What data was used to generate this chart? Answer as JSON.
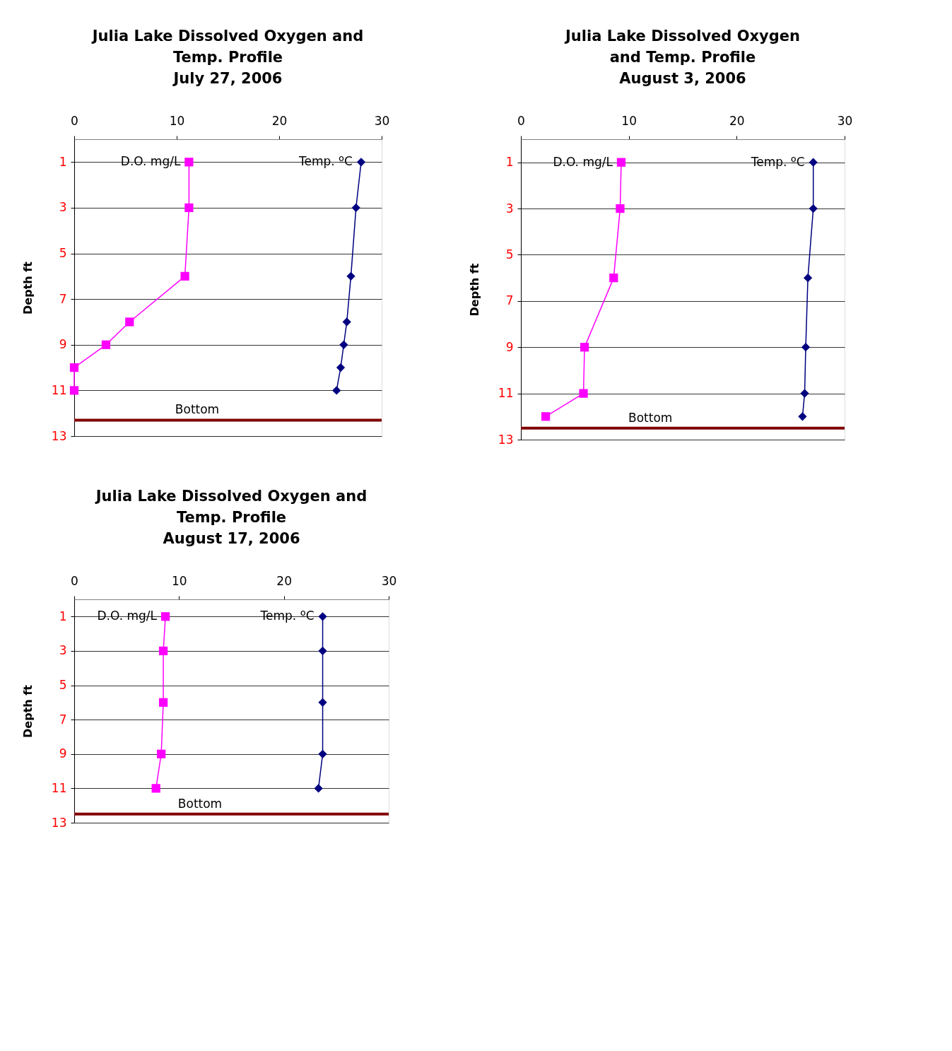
{
  "chart_data": [
    {
      "type": "line",
      "title": "Julia Lake Dissolved Oxygen and\nTemp. Profile\nJuly 27, 2006",
      "ylabel": "Depth ft",
      "xlim": [
        0,
        30
      ],
      "xticks": [
        0,
        10,
        20,
        30
      ],
      "ylim": [
        13,
        0
      ],
      "yticks": [
        1,
        3,
        5,
        7,
        9,
        11,
        13
      ],
      "grid": "y",
      "line_style": "solid",
      "series": [
        {
          "name": "D.O. mg/L",
          "color": "#ff00ff",
          "marker": "square",
          "x": [
            11.2,
            11.2,
            10.8,
            5.4,
            3.1,
            0,
            0
          ],
          "values": [
            1,
            3,
            6,
            8,
            9,
            10,
            11
          ]
        },
        {
          "name": "Temp. ºC",
          "color": "#000080",
          "marker": "diamond",
          "x": [
            28.0,
            27.5,
            27.0,
            26.6,
            26.3,
            26.0,
            25.6
          ],
          "values": [
            1,
            3,
            6,
            8,
            9,
            10,
            11
          ]
        }
      ],
      "ref_lines": [
        {
          "axis": "y",
          "value": 12.3,
          "label": "Bottom",
          "color": "#800000"
        }
      ]
    },
    {
      "type": "line",
      "title": "Julia Lake Dissolved Oxygen\nand Temp. Profile\nAugust 3, 2006",
      "ylabel": "Depth ft",
      "xlim": [
        0,
        30
      ],
      "xticks": [
        0,
        10,
        20,
        30
      ],
      "ylim": [
        13,
        0
      ],
      "yticks": [
        1,
        3,
        5,
        7,
        9,
        11,
        13
      ],
      "grid": "y",
      "line_style": "solid",
      "series": [
        {
          "name": "D.O. mg/L",
          "color": "#ff00ff",
          "marker": "square",
          "x": [
            9.3,
            9.2,
            8.6,
            5.9,
            5.8,
            2.3
          ],
          "values": [
            1,
            3,
            6,
            9,
            11,
            12
          ]
        },
        {
          "name": "Temp. ºC",
          "color": "#000080",
          "marker": "diamond",
          "x": [
            27.1,
            27.1,
            26.6,
            26.4,
            26.3,
            26.1
          ],
          "values": [
            1,
            3,
            6,
            9,
            11,
            12
          ]
        }
      ],
      "ref_lines": [
        {
          "axis": "y",
          "value": 12.5,
          "label": "Bottom",
          "color": "#800000"
        }
      ]
    },
    {
      "type": "line",
      "title": "Julia Lake Dissolved Oxygen and\nTemp. Profile\nAugust 17, 2006",
      "ylabel": "Depth ft",
      "xlim": [
        0,
        30
      ],
      "xticks": [
        0,
        10,
        20,
        30
      ],
      "ylim": [
        13,
        0
      ],
      "yticks": [
        1,
        3,
        5,
        7,
        9,
        11,
        13
      ],
      "grid": "y",
      "line_style": "solid",
      "series": [
        {
          "name": "D.O. mg/L",
          "color": "#ff00ff",
          "marker": "square",
          "x": [
            8.7,
            8.5,
            8.5,
            8.3,
            7.8
          ],
          "values": [
            1,
            3,
            6,
            9,
            11
          ]
        },
        {
          "name": "Temp. ºC",
          "color": "#000080",
          "marker": "diamond",
          "x": [
            23.7,
            23.7,
            23.7,
            23.7,
            23.3
          ],
          "values": [
            1,
            3,
            6,
            9,
            11
          ]
        }
      ],
      "ref_lines": [
        {
          "axis": "y",
          "value": 12.5,
          "label": "Bottom",
          "color": "#800000"
        }
      ]
    }
  ]
}
